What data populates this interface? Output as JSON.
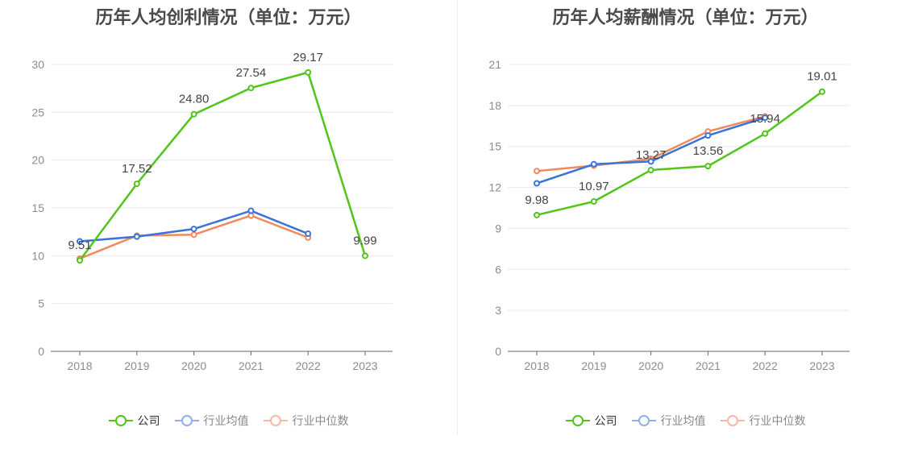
{
  "legend_labels": [
    "公司",
    "行业均值",
    "行业中位数"
  ],
  "colors": {
    "company": "#52c41a",
    "avg": "#3a73d9",
    "median": "#f08a5d",
    "avg_legend": "#8fb0ea",
    "median_legend": "#f7b9a3"
  },
  "chart_data": [
    {
      "type": "line",
      "title": "历年人均创利情况（单位：万元）",
      "categories": [
        "2018",
        "2019",
        "2020",
        "2021",
        "2022",
        "2023"
      ],
      "ylim": [
        0,
        30
      ],
      "yticks": [
        "0",
        "5",
        "10",
        "15",
        "20",
        "25",
        "30"
      ],
      "series": [
        {
          "name": "公司",
          "values": [
            9.51,
            17.52,
            24.8,
            27.54,
            29.17,
            9.99
          ],
          "labels": [
            "9.51",
            "17.52",
            "24.80",
            "27.54",
            "29.17",
            "9.99"
          ]
        },
        {
          "name": "行业均值",
          "values": [
            11.5,
            12.0,
            12.8,
            14.7,
            12.3,
            null
          ]
        },
        {
          "name": "行业中位数",
          "values": [
            9.7,
            12.1,
            12.2,
            14.2,
            11.9,
            null
          ]
        }
      ]
    },
    {
      "type": "line",
      "title": "历年人均薪酬情况（单位：万元）",
      "categories": [
        "2018",
        "2019",
        "2020",
        "2021",
        "2022",
        "2023"
      ],
      "ylim": [
        0,
        21
      ],
      "yticks": [
        "0",
        "3",
        "6",
        "9",
        "12",
        "15",
        "18",
        "21"
      ],
      "series": [
        {
          "name": "公司",
          "values": [
            9.98,
            10.97,
            13.27,
            13.56,
            15.94,
            19.01
          ],
          "labels": [
            "9.98",
            "10.97",
            "13.27",
            "13.56",
            "15.94",
            "19.01"
          ]
        },
        {
          "name": "行业均值",
          "values": [
            12.3,
            13.7,
            13.9,
            15.8,
            17.1,
            null
          ]
        },
        {
          "name": "行业中位数",
          "values": [
            13.2,
            13.6,
            14.1,
            16.1,
            17.2,
            null
          ]
        }
      ]
    }
  ]
}
